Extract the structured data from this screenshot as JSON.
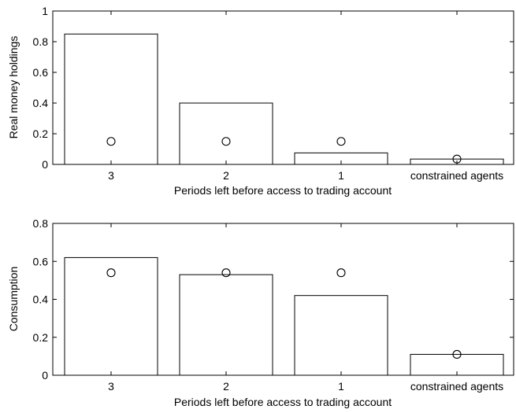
{
  "chart_data": [
    {
      "type": "bar",
      "categories": [
        "3",
        "2",
        "1",
        "constrained agents"
      ],
      "series": [
        {
          "values": [
            0.85,
            0.4,
            0.075,
            0.035
          ],
          "style": "bar"
        },
        {
          "values": [
            0.15,
            0.15,
            0.15,
            0.035
          ],
          "style": "circle-marker"
        }
      ],
      "xlabel": "Periods left before access to trading account",
      "ylabel": "Real money holdings",
      "ylim": [
        0,
        1
      ],
      "yticks": [
        0,
        0.2,
        0.4,
        0.6,
        0.8,
        1
      ],
      "ytick_labels": [
        "0",
        "0.2",
        "0.4",
        "0.6",
        "0.8",
        "1"
      ],
      "grid": false
    },
    {
      "type": "bar",
      "categories": [
        "3",
        "2",
        "1",
        "constrained agents"
      ],
      "series": [
        {
          "values": [
            0.62,
            0.53,
            0.42,
            0.11
          ],
          "style": "bar"
        },
        {
          "values": [
            0.54,
            0.54,
            0.54,
            0.11
          ],
          "style": "circle-marker"
        }
      ],
      "xlabel": "Periods left before access to trading account",
      "ylabel": "Consumption",
      "ylim": [
        0,
        0.8
      ],
      "yticks": [
        0,
        0.2,
        0.4,
        0.6,
        0.8
      ],
      "ytick_labels": [
        "0",
        "0.2",
        "0.4",
        "0.6",
        "0.8"
      ],
      "grid": false
    }
  ],
  "colors": {
    "bar_fill": "#ffffff",
    "stroke": "#000000"
  }
}
